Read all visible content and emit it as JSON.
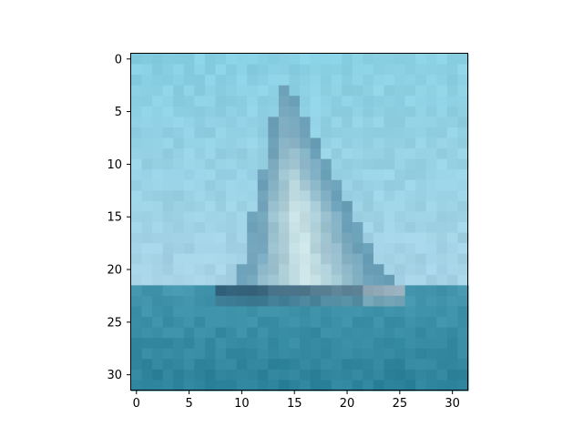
{
  "image": {
    "description_free": true,
    "grid_size": 32,
    "colors": {
      "sky_top": "#86cfe3",
      "sky_bottom": "#a8d3e6",
      "sea_top": "#4396ae",
      "sea_bottom": "#2b8199",
      "sail_dark": "#6a9fb8",
      "sail_light": "#cfe6e8",
      "hull_dark": "#2f5f78",
      "hull_light": "#9fb3c0",
      "axis": "#000000"
    }
  },
  "axes": {
    "x_ticks": [
      "0",
      "5",
      "10",
      "15",
      "20",
      "25",
      "30"
    ],
    "y_ticks": [
      "0",
      "5",
      "10",
      "15",
      "20",
      "25",
      "30"
    ]
  }
}
